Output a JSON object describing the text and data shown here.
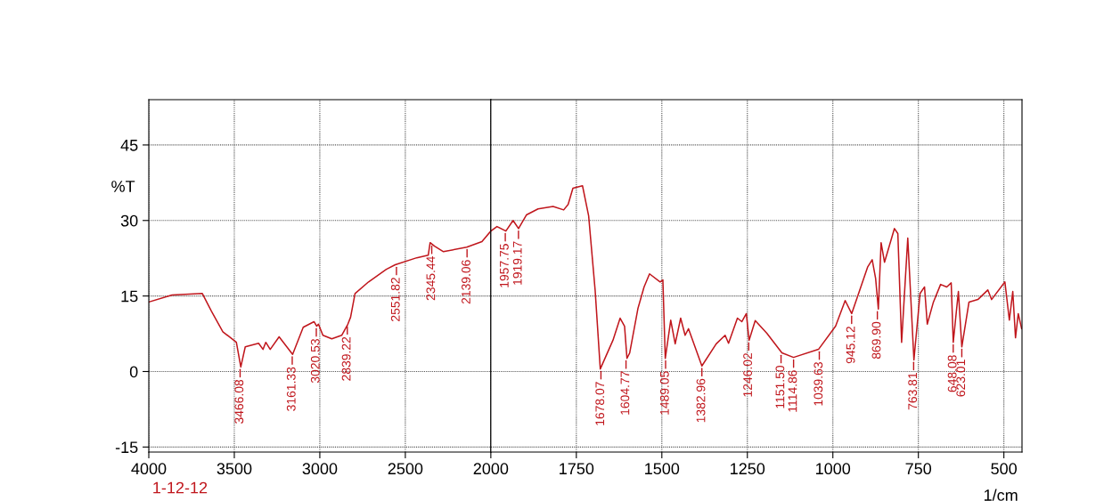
{
  "chart_data": [
    {
      "type": "line",
      "ylabel": "%T",
      "xlim": [
        4000,
        2000
      ],
      "xticks": [
        4000,
        3500,
        3000,
        2500,
        2000
      ],
      "ylim": [
        -16,
        54
      ],
      "yticks": [
        -15,
        0,
        15,
        30,
        45
      ],
      "grid": true,
      "marker": "none",
      "line_style": "solid",
      "series": [
        {
          "color": "#c0161c",
          "x": [
            4000,
            3864,
            3687,
            3634,
            3567,
            3488,
            3462,
            3436,
            3358,
            3332,
            3316,
            3290,
            3238,
            3159,
            3097,
            3034,
            3018,
            3008,
            2982,
            2930,
            2872,
            2836,
            2820,
            2794,
            2715,
            2611,
            2559,
            2433,
            2366,
            2355,
            2329,
            2277,
            2141,
            2052,
            2000
          ],
          "values": [
            13.8,
            15.2,
            15.5,
            12,
            7.9,
            5.8,
            0.9,
            4.9,
            5.6,
            4.4,
            5.8,
            4.4,
            6.9,
            3.4,
            8.8,
            9.9,
            9,
            9.4,
            7.2,
            6.5,
            7.2,
            9.4,
            10.8,
            15.5,
            17.8,
            20.3,
            21.2,
            22.6,
            23.1,
            25.6,
            24.9,
            23.8,
            24.7,
            25.8,
            27.9
          ]
        }
      ],
      "annotations": [
        {
          "text": "3466.08",
          "x": 3466.08,
          "y": 0.9
        },
        {
          "text": "3161.33",
          "x": 3161.33,
          "y": 3.4
        },
        {
          "text": "3020.53",
          "x": 3020.53,
          "y": 9
        },
        {
          "text": "2839.22",
          "x": 2839.22,
          "y": 9.4
        },
        {
          "text": "2551.82",
          "x": 2551.82,
          "y": 21.2
        },
        {
          "text": "2345.44",
          "x": 2345.44,
          "y": 25.4
        },
        {
          "text": "2139.06",
          "x": 2139.06,
          "y": 24.7
        },
        "1-12-12"
      ]
    },
    {
      "type": "line",
      "xlabel": "1/cm",
      "xlim": [
        2000,
        447
      ],
      "xticks": [
        1750,
        1500,
        1250,
        1000,
        750,
        500
      ],
      "ylim": [
        -16,
        54
      ],
      "yticks": [
        -15,
        0,
        15,
        30,
        45
      ],
      "tick_labels": "x",
      "grid": true,
      "marker": "none",
      "line_style": "solid",
      "series": [
        {
          "color": "#c0161c",
          "x": [
            2000,
            1982,
            1956,
            1935,
            1919,
            1896,
            1862,
            1818,
            1787,
            1774,
            1760,
            1732,
            1714,
            1695,
            1680,
            1643,
            1622,
            1609,
            1602,
            1594,
            1570,
            1552,
            1536,
            1505,
            1497,
            1490,
            1474,
            1461,
            1445,
            1432,
            1422,
            1383,
            1341,
            1315,
            1305,
            1279,
            1266,
            1253,
            1245,
            1227,
            1193,
            1149,
            1115,
            1042,
            992,
            964,
            945,
            898,
            885,
            875,
            867,
            859,
            849,
            820,
            810,
            799,
            789,
            781,
            763,
            745,
            732,
            724,
            706,
            685,
            667,
            654,
            648,
            633,
            623,
            602,
            576,
            547,
            536,
            497,
            484,
            474,
            466,
            458,
            448
          ],
          "values": [
            27.9,
            28.8,
            27.9,
            30,
            28.4,
            31.1,
            32.3,
            32.8,
            32.1,
            33.2,
            36.4,
            36.9,
            30.9,
            16.1,
            0.5,
            6.2,
            10.6,
            9,
            2.6,
            3.7,
            12.5,
            16.8,
            19.4,
            17.8,
            18.2,
            2.6,
            10.2,
            5.5,
            10.6,
            7.2,
            8.5,
            1.1,
            5.5,
            7.2,
            5.6,
            10.6,
            9.9,
            11.5,
            6.2,
            10.1,
            7.6,
            3.7,
            2.8,
            4.4,
            9,
            14.1,
            11.5,
            20.8,
            22.2,
            18.5,
            12.4,
            25.6,
            21.7,
            28.4,
            27.4,
            5.8,
            17.3,
            26.5,
            2.3,
            15.5,
            16.8,
            9.4,
            13.8,
            17.3,
            16.8,
            17.6,
            5.8,
            15.9,
            4.9,
            13.8,
            14.3,
            16.2,
            14.3,
            17.8,
            10.2,
            15.9,
            6.7,
            11.5,
            8.5
          ]
        }
      ],
      "annotations": [
        {
          "text": "1957.75",
          "x": 1957.75,
          "y": 27.9
        },
        {
          "text": "1919.17",
          "x": 1919.17,
          "y": 28.4
        },
        {
          "text": "1678.07",
          "x": 1678.07,
          "y": 0.5
        },
        {
          "text": "1604.77",
          "x": 1604.77,
          "y": 2.6
        },
        {
          "text": "1489.05",
          "x": 1489.05,
          "y": 2.6
        },
        {
          "text": "1382.96",
          "x": 1382.96,
          "y": 1.1
        },
        {
          "text": "1246.02",
          "x": 1246.02,
          "y": 6.2
        },
        {
          "text": "1151.50",
          "x": 1151.5,
          "y": 3.7
        },
        {
          "text": "1114.86",
          "x": 1114.86,
          "y": 2.8
        },
        {
          "text": "1039.63",
          "x": 1039.63,
          "y": 4.4
        },
        {
          "text": "945.12",
          "x": 945.12,
          "y": 11.5
        },
        {
          "text": "869.90",
          "x": 869.9,
          "y": 12.4
        },
        {
          "text": "763.81",
          "x": 763.81,
          "y": 2.3
        },
        {
          "text": "648.08",
          "x": 648.08,
          "y": 5.8
        },
        {
          "text": "623.01",
          "x": 623.01,
          "y": 4.9
        }
      ]
    }
  ]
}
